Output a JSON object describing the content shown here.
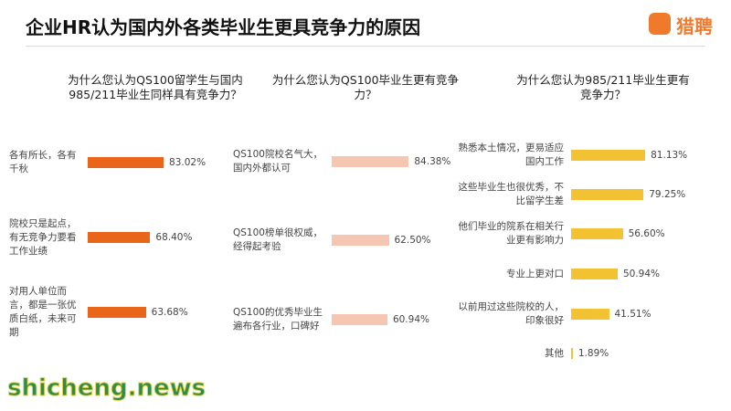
{
  "title": "企业HR认为国内外各类毕业生更具竞争力的原因",
  "logo": "猎聘",
  "watermark": "shicheng.news",
  "chart_data": [
    {
      "type": "bar",
      "orientation": "horizontal",
      "title": "为什么您认为QS100留学生与国内985/211毕业生同样具有竞争力？",
      "categories": [
        "各有所长，各有千秋",
        "院校只是起点，有无竞争力要看工作业绩",
        "对用人单位而言，都是一张优质白纸，未来可期"
      ],
      "values": [
        83.02,
        68.4,
        63.68
      ],
      "value_labels": [
        "83.02%",
        "68.40%",
        "63.68%"
      ],
      "color": "#e8651a"
    },
    {
      "type": "bar",
      "orientation": "horizontal",
      "title": "为什么您认为QS100毕业生更有竞争力？",
      "categories": [
        "QS100院校名气大，国内外都认可",
        "QS100榜单很权威，经得起考验",
        "QS100的优秀毕业生遍布各行业，口碑好"
      ],
      "values": [
        84.38,
        62.5,
        60.94
      ],
      "value_labels": [
        "84.38%",
        "62.50%",
        "60.94%"
      ],
      "color": "#f5c6b2"
    },
    {
      "type": "bar",
      "orientation": "horizontal",
      "title": "为什么您认为985/211毕业生更有竞争力？",
      "categories": [
        "熟悉本土情况，更易适应国内工作",
        "这些毕业生也很优秀，不比留学生差",
        "他们毕业的院系在相关行业更有影响力",
        "专业上更对口",
        "以前用过这些院校的人，印象很好",
        "其他"
      ],
      "values": [
        81.13,
        79.25,
        56.6,
        50.94,
        41.51,
        1.89
      ],
      "value_labels": [
        "81.13%",
        "79.25%",
        "56.60%",
        "50.94%",
        "41.51%",
        "1.89%"
      ],
      "color": "#f2c232"
    }
  ]
}
